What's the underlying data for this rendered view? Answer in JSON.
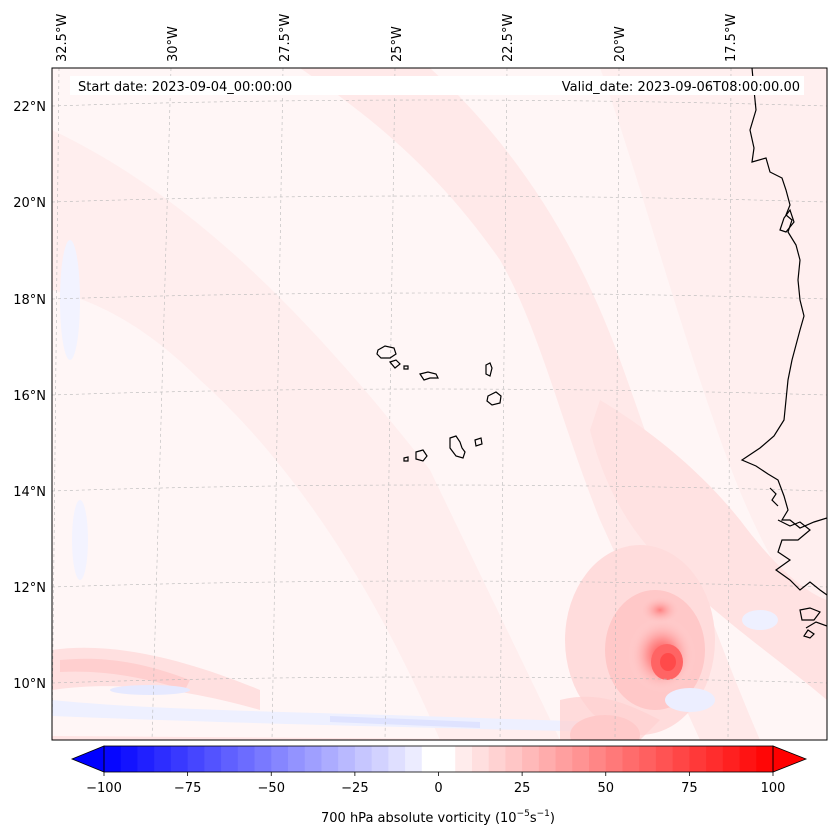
{
  "header": {
    "start_date": "Start date: 2023-09-04_00:00:00",
    "valid_date": "Valid_date: 2023-09-06T08:00:00.00"
  },
  "map": {
    "longitude_labels": [
      "32.5°W",
      "30°W",
      "27.5°W",
      "25°W",
      "22.5°W",
      "20°W",
      "17.5°W"
    ],
    "latitude_labels": [
      "22°N",
      "20°N",
      "18°N",
      "16°N",
      "14°N",
      "12°N",
      "10°N"
    ],
    "features": [
      "cape-verde-islands",
      "west-africa-coastline",
      "vorticity-maximum"
    ]
  },
  "colorbar": {
    "ticks": [
      "−100",
      "−75",
      "−50",
      "−25",
      "0",
      "25",
      "50",
      "75",
      "100"
    ],
    "tick_values": [
      -100,
      -75,
      -50,
      -25,
      0,
      25,
      50,
      75,
      100
    ],
    "range": [
      -100,
      100
    ],
    "step": 5,
    "label_prefix": "700 hPa absolute vorticity (10",
    "label_exp1": "−5",
    "label_mid": "s",
    "label_exp2": "−1",
    "label_suffix": ")",
    "negative_color": "#0000ff",
    "zero_color": "#ffffff",
    "positive_color": "#ff0000"
  }
}
